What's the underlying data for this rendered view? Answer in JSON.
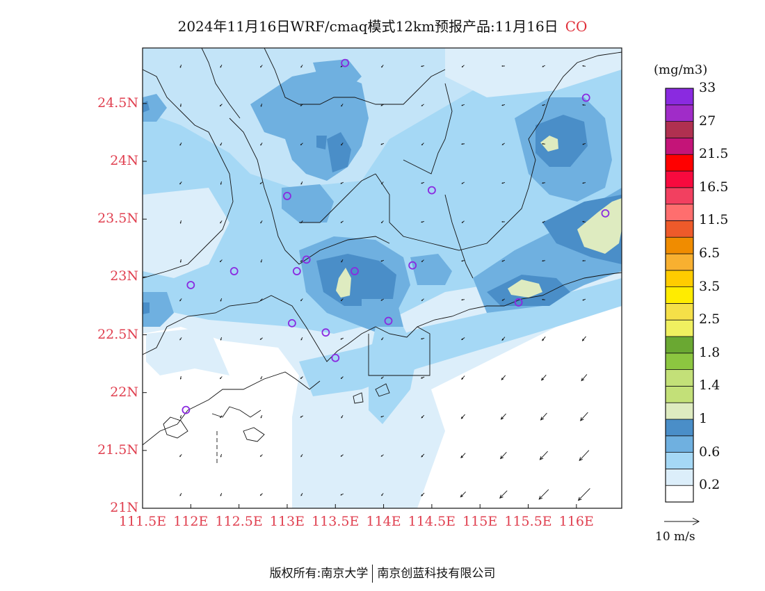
{
  "title": {
    "main": "2024年11月16日WRF/cmaq模式12km预报产品:11月16日",
    "species": "CO"
  },
  "colorbar": {
    "unit": "(mg/m3)",
    "bins": [
      {
        "color": "#ffffff"
      },
      {
        "color": "#dceefa"
      },
      {
        "color": "#a5d8f5"
      },
      {
        "color": "#6fb0e0"
      },
      {
        "color": "#4a8ec8"
      },
      {
        "color": "#deebc0"
      },
      {
        "color": "#c3e078"
      },
      {
        "color": "#c3e078"
      },
      {
        "color": "#8cc640"
      },
      {
        "color": "#6aa832"
      },
      {
        "color": "#f0f060"
      },
      {
        "color": "#f5e048"
      },
      {
        "color": "#ffec00"
      },
      {
        "color": "#ffcc00"
      },
      {
        "color": "#f8b030"
      },
      {
        "color": "#f08c00"
      },
      {
        "color": "#ee5a2a"
      },
      {
        "color": "#ff6e6e"
      },
      {
        "color": "#f24060"
      },
      {
        "color": "#f80a3e"
      },
      {
        "color": "#ff0000"
      },
      {
        "color": "#c41478"
      },
      {
        "color": "#b03050"
      },
      {
        "color": "#a02cc8"
      },
      {
        "color": "#8a2ae0"
      }
    ],
    "labels": [
      "0.2",
      "0.6",
      "1",
      "1.4",
      "1.8",
      "2.5",
      "3.5",
      "6.5",
      "11.5",
      "16.5",
      "21.5",
      "27",
      "33"
    ]
  },
  "axes": {
    "lat_labels": [
      "21N",
      "21.5N",
      "22N",
      "22.5N",
      "23N",
      "23.5N",
      "24N",
      "24.5N"
    ],
    "lon_labels": [
      "111.5E",
      "112E",
      "112.5E",
      "113E",
      "113.5E",
      "114E",
      "114.5E",
      "115E",
      "115.5E",
      "116E"
    ]
  },
  "wind_vector": {
    "label": "10 m/s",
    "reference_speed": 10
  },
  "footer": {
    "left": "版权所有:南京大学",
    "right": "南京创蓝科技有限公司"
  },
  "stations": [
    {
      "lon": 113.6,
      "lat": 24.85
    },
    {
      "lon": 116.1,
      "lat": 24.55
    },
    {
      "lon": 113.0,
      "lat": 23.7
    },
    {
      "lon": 114.5,
      "lat": 23.75
    },
    {
      "lon": 116.3,
      "lat": 23.55
    },
    {
      "lon": 112.45,
      "lat": 23.05
    },
    {
      "lon": 112.0,
      "lat": 22.93
    },
    {
      "lon": 113.1,
      "lat": 23.05
    },
    {
      "lon": 113.2,
      "lat": 23.15
    },
    {
      "lon": 113.7,
      "lat": 23.05
    },
    {
      "lon": 114.3,
      "lat": 23.1
    },
    {
      "lon": 115.4,
      "lat": 22.78
    },
    {
      "lon": 114.05,
      "lat": 22.62
    },
    {
      "lon": 113.05,
      "lat": 22.6
    },
    {
      "lon": 113.4,
      "lat": 22.52
    },
    {
      "lon": 113.5,
      "lat": 22.3
    },
    {
      "lon": 111.95,
      "lat": 21.85
    }
  ]
}
